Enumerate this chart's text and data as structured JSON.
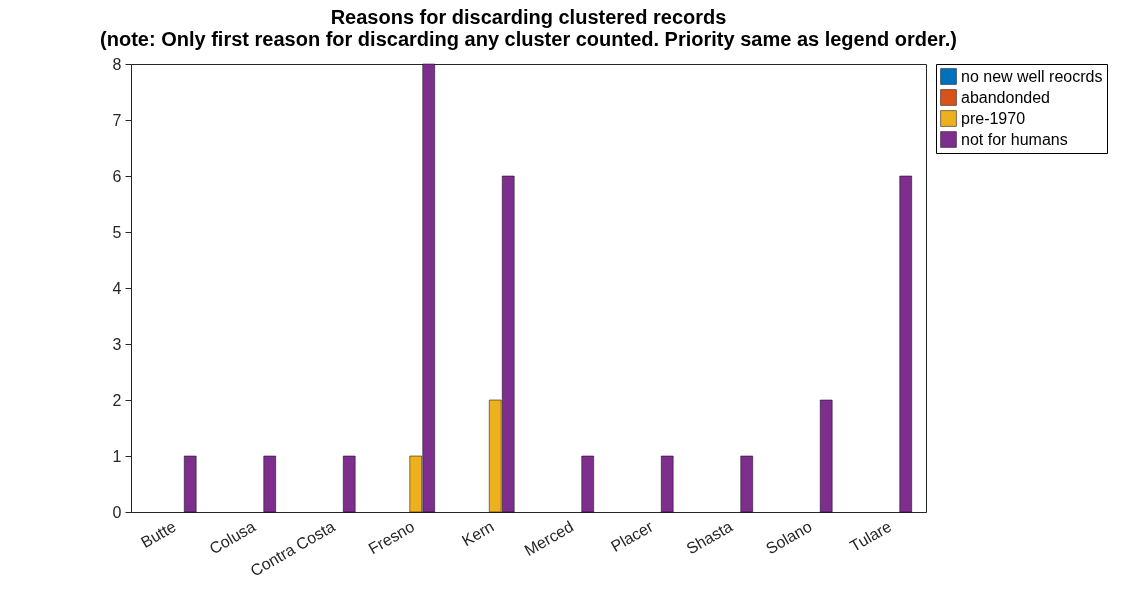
{
  "chart_data": {
    "type": "bar",
    "title": "Reasons for discarding clustered records",
    "subtitle": "(note: Only first reason for discarding any cluster counted. Priority same as legend order.)",
    "categories": [
      "Butte",
      "Colusa",
      "Contra Costa",
      "Fresno",
      "Kern",
      "Merced",
      "Placer",
      "Shasta",
      "Solano",
      "Tulare"
    ],
    "series": [
      {
        "name": "no new well reocrds",
        "color": "#0072bd",
        "values": [
          0,
          0,
          0,
          0,
          0,
          0,
          0,
          0,
          0,
          0
        ]
      },
      {
        "name": "abandonded",
        "color": "#d95319",
        "values": [
          0,
          0,
          0,
          0,
          0,
          0,
          0,
          0,
          0,
          0
        ]
      },
      {
        "name": "pre-1970",
        "color": "#edb120",
        "values": [
          0,
          0,
          0,
          1,
          2,
          0,
          0,
          0,
          0,
          0
        ]
      },
      {
        "name": "not for humans",
        "color": "#7e2f8e",
        "values": [
          1,
          1,
          1,
          8,
          6,
          1,
          1,
          1,
          2,
          6
        ]
      }
    ],
    "ylim": [
      0,
      8
    ],
    "yticks": [
      0,
      1,
      2,
      3,
      4,
      5,
      6,
      7,
      8
    ],
    "grid": false,
    "legend": "right"
  }
}
